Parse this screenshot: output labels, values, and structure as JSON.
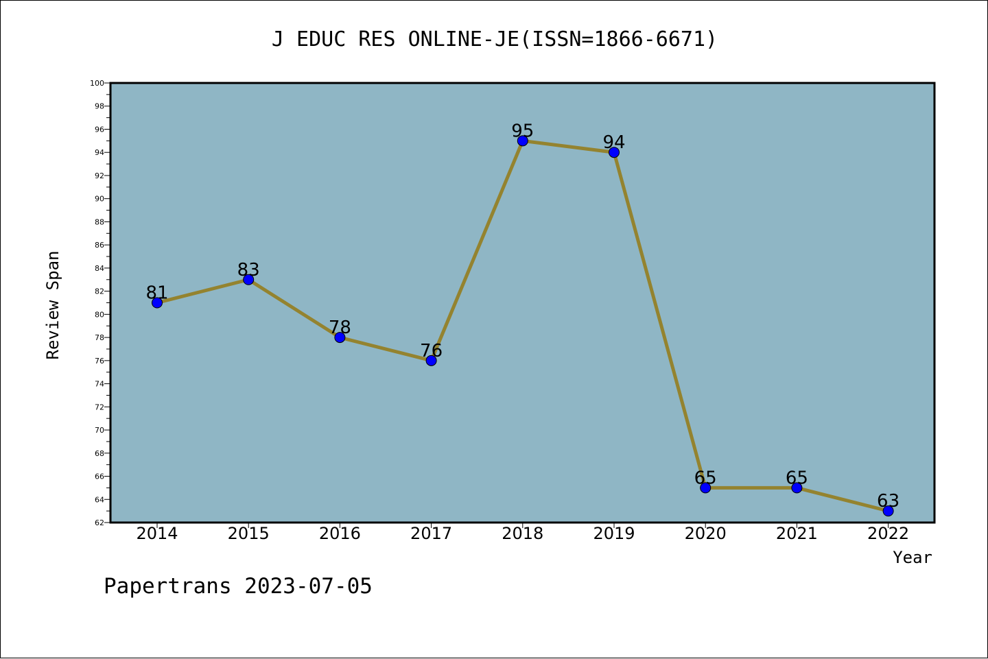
{
  "chart_data": {
    "type": "line",
    "title": "J EDUC RES ONLINE-JE(ISSN=1866-6671)",
    "xlabel": "Year",
    "ylabel": "Review Span",
    "categories": [
      "2014",
      "2015",
      "2016",
      "2017",
      "2018",
      "2019",
      "2020",
      "2021",
      "2022"
    ],
    "values": [
      81,
      83,
      78,
      76,
      95,
      94,
      65,
      65,
      63
    ],
    "ylim": [
      62,
      100
    ],
    "ytick_step": 2,
    "grid": false,
    "colors": {
      "plot_background": "#8fb6c5",
      "line": "#94832f",
      "marker": "#0000ff"
    }
  },
  "footer": "Papertrans 2023-07-05"
}
